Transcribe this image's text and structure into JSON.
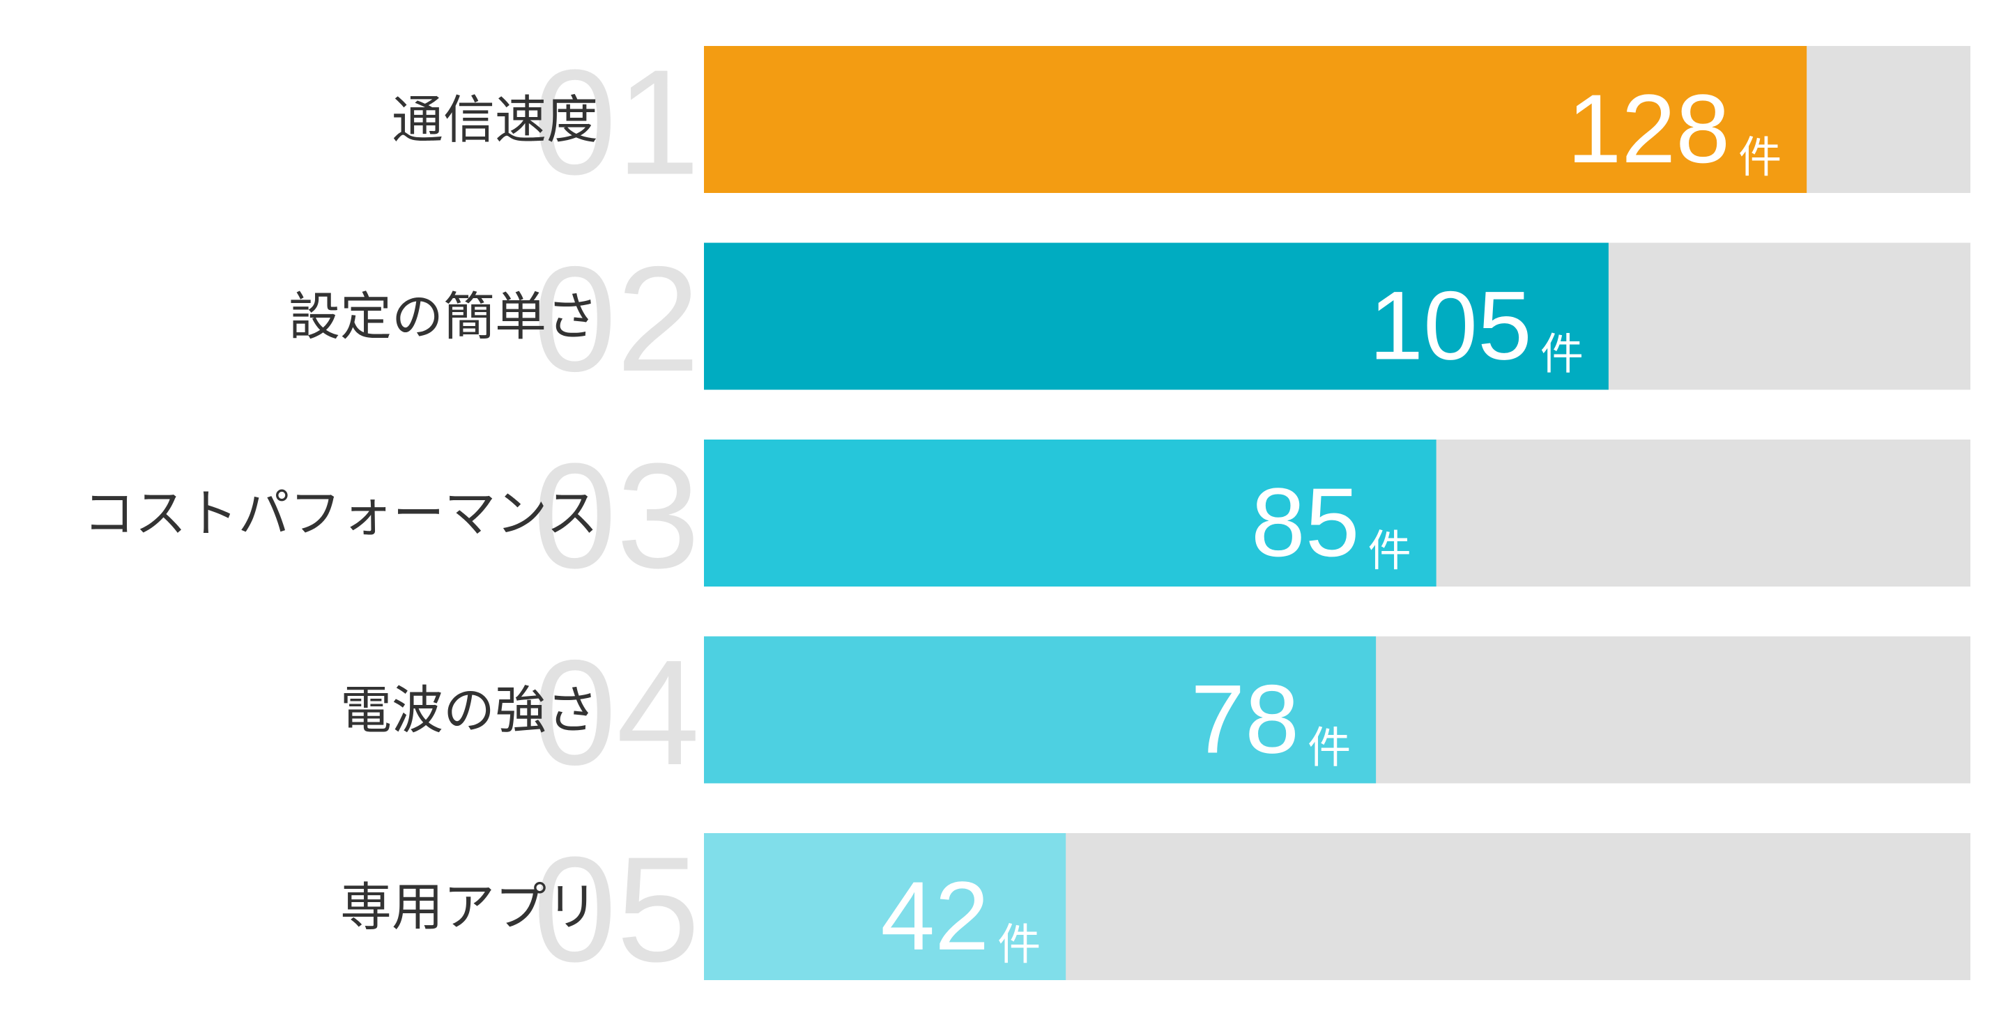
{
  "chart_data": {
    "type": "bar",
    "orientation": "horizontal",
    "categories": [
      "通信速度",
      "設定の簡単さ",
      "コストパフォーマンス",
      "電波の強さ",
      "専用アプリ"
    ],
    "ranks": [
      "01",
      "02",
      "03",
      "04",
      "05"
    ],
    "values": [
      128,
      105,
      85,
      78,
      42
    ],
    "unit": "件",
    "colors": [
      "#f39c12",
      "#00acc1",
      "#26c6da",
      "#4dd0e1",
      "#80deea"
    ],
    "track_color": "#e0e0e0",
    "xlim": [
      0,
      147
    ]
  }
}
